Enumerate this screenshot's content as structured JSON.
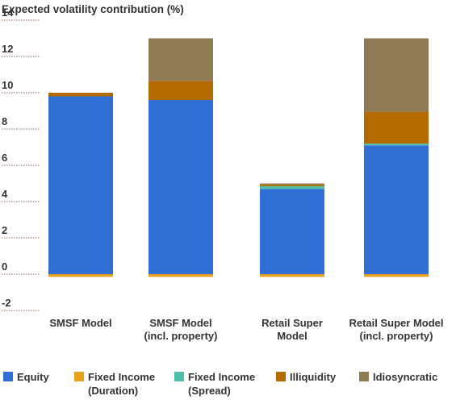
{
  "chart_data": {
    "type": "bar",
    "stacked": true,
    "title": "Expected volatility contribution (%)",
    "xlabel": "",
    "ylabel": "",
    "ylim": [
      -2,
      14
    ],
    "yticks": [
      -2,
      0,
      2,
      4,
      6,
      8,
      10,
      12,
      14
    ],
    "grid": false,
    "legend_position": "bottom",
    "categories": [
      {
        "line1": "SMSF Model",
        "line2": ""
      },
      {
        "line1": "SMSF Model",
        "line2": "(incl. property)"
      },
      {
        "line1": "Retail Super",
        "line2": "Model"
      },
      {
        "line1": "Retail Super Model",
        "line2": "(incl. property)"
      }
    ],
    "series": [
      {
        "name_line1": "Equity",
        "name_line2": "",
        "color": "#2f6fd6",
        "values": [
          9.8,
          9.6,
          4.7,
          7.1
        ]
      },
      {
        "name_line1": "Fixed Income",
        "name_line2": "(Duration)",
        "color": "#e8a21c",
        "values": [
          -0.15,
          -0.15,
          -0.15,
          -0.15
        ]
      },
      {
        "name_line1": "Fixed Income",
        "name_line2": "(Spread)",
        "color": "#4dbfaa",
        "values": [
          0.0,
          0.0,
          0.15,
          0.1
        ]
      },
      {
        "name_line1": "Illiquidity",
        "name_line2": "",
        "color": "#b36b00",
        "values": [
          0.2,
          1.05,
          0.1,
          1.75
        ]
      },
      {
        "name_line1": "Idiosyncratic",
        "name_line2": "",
        "color": "#8f7b56",
        "values": [
          0.0,
          2.35,
          0.05,
          4.05
        ]
      }
    ]
  }
}
